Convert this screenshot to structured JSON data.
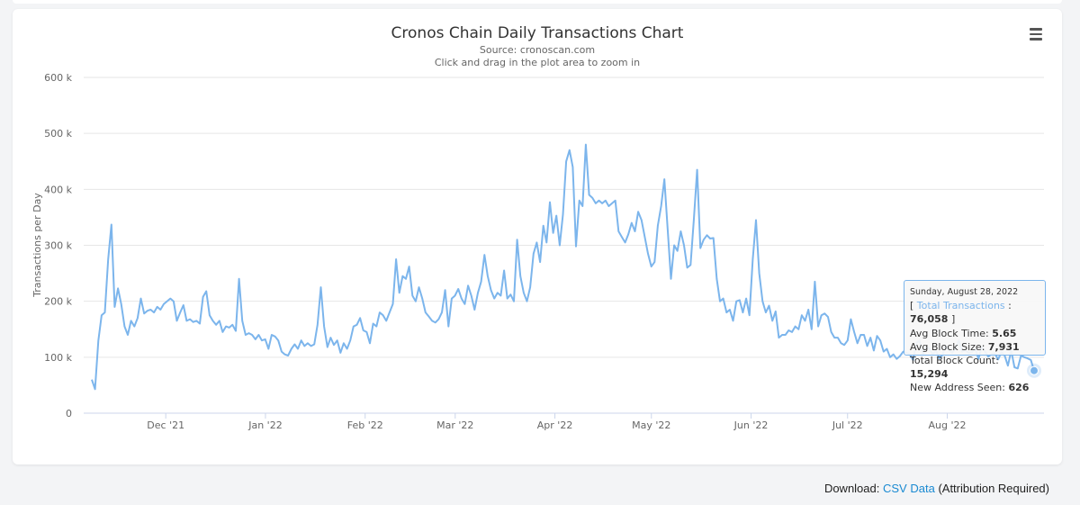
{
  "chart_data": {
    "type": "line",
    "title": "Cronos Chain Daily Transactions Chart",
    "subtitle": "Source: cronoscan.com",
    "zoom_hint": "Click and drag in the plot area to zoom in",
    "ylabel": "Transactions per Day",
    "ylim": [
      0,
      600000
    ],
    "y_ticks": [
      {
        "value": 0,
        "label": "0"
      },
      {
        "value": 100000,
        "label": "100 k"
      },
      {
        "value": 200000,
        "label": "200 k"
      },
      {
        "value": 300000,
        "label": "300 k"
      },
      {
        "value": 400000,
        "label": "400 k"
      },
      {
        "value": 500000,
        "label": "500 k"
      },
      {
        "value": 600000,
        "label": "600 k"
      }
    ],
    "x_start": "2021-11-08",
    "x_end": "2022-08-28",
    "x_ticks": [
      {
        "date": "2021-12-01",
        "label": "Dec '21"
      },
      {
        "date": "2022-01-01",
        "label": "Jan '22"
      },
      {
        "date": "2022-02-01",
        "label": "Feb '22"
      },
      {
        "date": "2022-03-01",
        "label": "Mar '22"
      },
      {
        "date": "2022-04-01",
        "label": "Apr '22"
      },
      {
        "date": "2022-05-01",
        "label": "May '22"
      },
      {
        "date": "2022-06-01",
        "label": "Jun '22"
      },
      {
        "date": "2022-07-01",
        "label": "Jul '22"
      },
      {
        "date": "2022-08-01",
        "label": "Aug '22"
      }
    ],
    "series": [
      {
        "name": "Total Transactions",
        "color": "#7cb5ec",
        "values": [
          60000,
          43000,
          130000,
          175000,
          180000,
          275000,
          337000,
          190000,
          223000,
          195000,
          155000,
          140000,
          165000,
          155000,
          170000,
          205000,
          178000,
          183000,
          185000,
          180000,
          190000,
          185000,
          195000,
          200000,
          205000,
          200000,
          165000,
          180000,
          193000,
          165000,
          168000,
          163000,
          165000,
          160000,
          208000,
          218000,
          175000,
          165000,
          158000,
          165000,
          145000,
          155000,
          153000,
          158000,
          147000,
          240000,
          165000,
          140000,
          143000,
          140000,
          132000,
          140000,
          130000,
          132000,
          115000,
          140000,
          137000,
          130000,
          110000,
          105000,
          103000,
          115000,
          123000,
          115000,
          130000,
          120000,
          125000,
          120000,
          123000,
          158000,
          225000,
          155000,
          118000,
          135000,
          122000,
          130000,
          108000,
          125000,
          115000,
          130000,
          155000,
          158000,
          170000,
          148000,
          145000,
          125000,
          160000,
          155000,
          180000,
          175000,
          165000,
          180000,
          195000,
          275000,
          215000,
          245000,
          240000,
          262000,
          210000,
          200000,
          225000,
          205000,
          180000,
          173000,
          165000,
          162000,
          168000,
          180000,
          220000,
          155000,
          205000,
          210000,
          222000,
          205000,
          195000,
          228000,
          210000,
          185000,
          215000,
          235000,
          283000,
          245000,
          220000,
          205000,
          215000,
          210000,
          255000,
          205000,
          212000,
          200000,
          310000,
          245000,
          215000,
          200000,
          225000,
          285000,
          305000,
          270000,
          335000,
          305000,
          377000,
          322000,
          353000,
          300000,
          355000,
          450000,
          470000,
          440000,
          298000,
          380000,
          370000,
          480000,
          390000,
          385000,
          375000,
          380000,
          375000,
          380000,
          370000,
          375000,
          380000,
          325000,
          315000,
          305000,
          320000,
          340000,
          325000,
          360000,
          345000,
          315000,
          285000,
          262000,
          270000,
          335000,
          370000,
          418000,
          330000,
          240000,
          300000,
          290000,
          325000,
          300000,
          260000,
          265000,
          345000,
          435000,
          295000,
          310000,
          318000,
          312000,
          313000,
          240000,
          200000,
          205000,
          180000,
          185000,
          165000,
          200000,
          202000,
          180000,
          205000,
          175000,
          275000,
          345000,
          250000,
          200000,
          180000,
          192000,
          165000,
          182000,
          135000,
          140000,
          140000,
          148000,
          145000,
          155000,
          150000,
          175000,
          165000,
          185000,
          150000,
          235000,
          155000,
          175000,
          178000,
          172000,
          145000,
          135000,
          135000,
          125000,
          122000,
          130000,
          168000,
          145000,
          125000,
          140000,
          140000,
          120000,
          135000,
          112000,
          138000,
          130000,
          110000,
          115000,
          100000,
          105000,
          97000,
          102000,
          110000,
          108000,
          105000,
          95000,
          125000,
          130000,
          105000,
          120000,
          115000,
          105000,
          112000,
          98000,
          104000,
          120000,
          113000,
          108000,
          116000,
          130000,
          110000,
          112000,
          108000,
          109000,
          115000,
          97000,
          118000,
          110000,
          101000,
          106000,
          107000,
          96000,
          109000,
          103000,
          85000,
          112000,
          82000,
          80000,
          103000,
          100000,
          98000,
          95000,
          76058
        ]
      }
    ]
  },
  "menu": {
    "icon": "hamburger-menu-icon"
  },
  "tooltip": {
    "date": "Sunday, August 28, 2022",
    "series_label": "Total Transactions",
    "value": "76,058",
    "avg_block_time_label": "Avg Block Time:",
    "avg_block_time": "5.65",
    "avg_block_size_label": "Avg Block Size:",
    "avg_block_size": "7,931",
    "total_block_count_label": "Total Block Count:",
    "total_block_count": "15,294",
    "new_address_label": "New Address Seen:",
    "new_address": "626"
  },
  "footer": {
    "download_label": "Download:",
    "csv_link": "CSV Data",
    "attribution": "(Attribution Required)"
  }
}
